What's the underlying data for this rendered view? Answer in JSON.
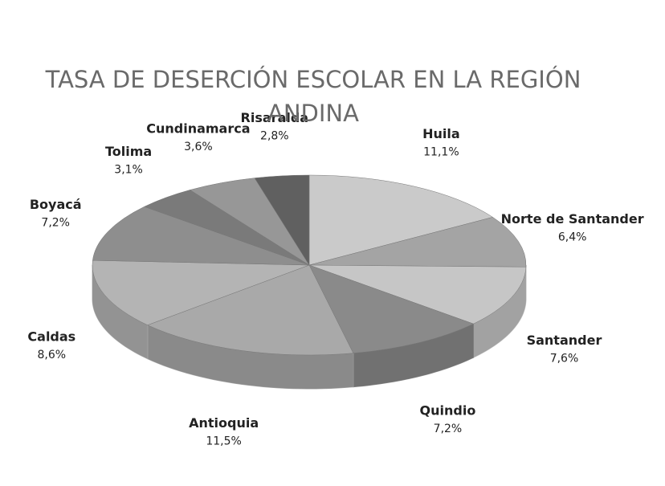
{
  "chart_data": {
    "type": "pie",
    "title": "TASA DE DESERCIÓN ESCOLAR EN LA REGIÓN ANDINA",
    "categories": [
      "Huila",
      "Norte de Santander",
      "Santander",
      "Quindio",
      "Antioquia",
      "Caldas",
      "Boyacá",
      "Tolima",
      "Cundinamarca",
      "Risaralda"
    ],
    "values": [
      11.1,
      6.4,
      7.6,
      7.2,
      11.5,
      8.6,
      7.2,
      3.1,
      3.6,
      2.8
    ],
    "value_labels": [
      "11,1%",
      "6,4%",
      "7,6%",
      "7,2%",
      "11,5%",
      "8,6%",
      "7,2%",
      "3,1%",
      "3,6%",
      "2,8%"
    ],
    "colors": [
      "#cacaca",
      "#a4a4a4",
      "#c6c6c6",
      "#8a8a8a",
      "#a9a9a9",
      "#b4b4b4",
      "#8e8e8e",
      "#7a7a7a",
      "#979797",
      "#606060"
    ]
  }
}
